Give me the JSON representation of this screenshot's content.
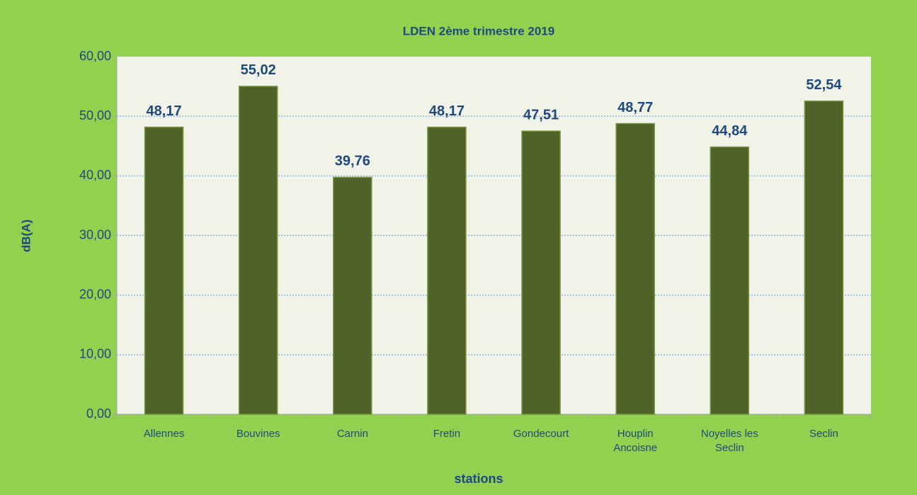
{
  "chart_data": {
    "type": "bar",
    "title": "LDEN 2ème trimestre 2019",
    "x_label": "stations",
    "y_label": "dB(A)",
    "categories": [
      "Allennes",
      "Bouvines",
      "Carnin",
      "Fretin",
      "Gondecourt",
      "Houplin Ancoisne",
      "Noyelles les Seclin",
      "Seclin"
    ],
    "values": [
      48.17,
      55.02,
      39.76,
      48.17,
      47.51,
      48.77,
      44.84,
      52.54
    ],
    "value_labels": [
      "48,17",
      "55,02",
      "39,76",
      "48,17",
      "47,51",
      "48,77",
      "44,84",
      "52,54"
    ],
    "color": "#4f6228",
    "ylim": [
      0,
      60
    ],
    "yticks": [
      {
        "value": 0,
        "label": "0,00"
      },
      {
        "value": 10,
        "label": "10,00"
      },
      {
        "value": 20,
        "label": "20,00"
      },
      {
        "value": 30,
        "label": "30,00"
      },
      {
        "value": 40,
        "label": "40,00"
      },
      {
        "value": 50,
        "label": "50,00"
      },
      {
        "value": 60,
        "label": "60,00"
      }
    ],
    "grid": true
  }
}
